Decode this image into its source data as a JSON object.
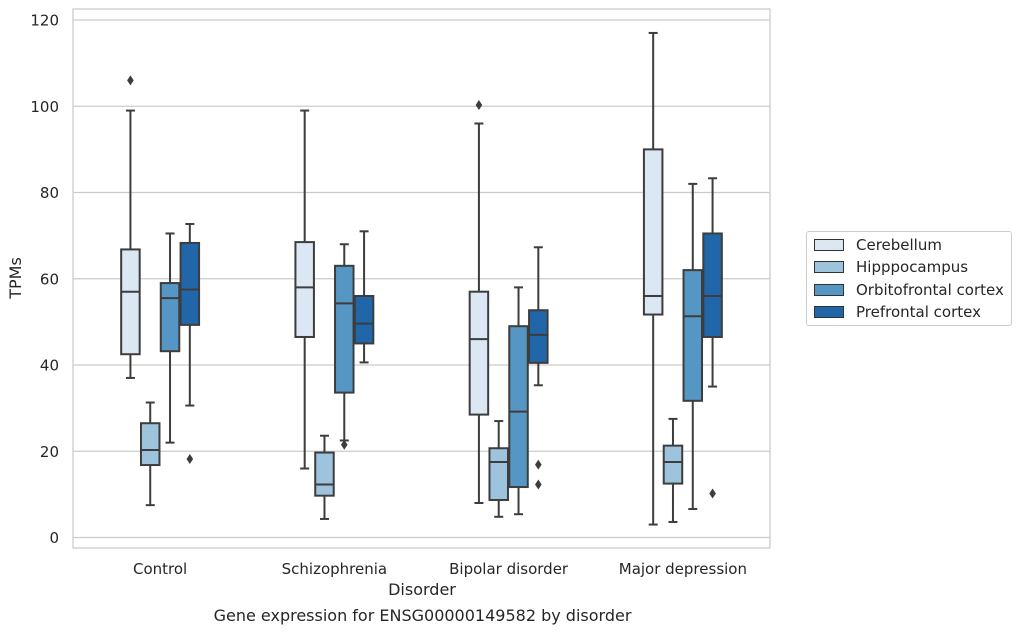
{
  "caption": "Gene expression for ENSG00000149582 by disorder",
  "chart_data": {
    "type": "box",
    "xlabel": "Disorder",
    "ylabel": "TPMs",
    "ylim": [
      -2.5,
      122.5
    ],
    "yticks": [
      0,
      20,
      40,
      60,
      80,
      100,
      120
    ],
    "grid": true,
    "legend_position": "right",
    "categories": [
      "Control",
      "Schizophrenia",
      "Bipolar disorder",
      "Major depression"
    ],
    "series": [
      {
        "name": "Cerebellum",
        "color": "#dbe7f3",
        "boxes": [
          {
            "whisker_low": 37,
            "q1": 42.5,
            "median": 57,
            "q3": 66.8,
            "whisker_high": 99,
            "outliers": [
              106
            ]
          },
          {
            "whisker_low": 16,
            "q1": 46.5,
            "median": 58,
            "q3": 68.5,
            "whisker_high": 99,
            "outliers": []
          },
          {
            "whisker_low": 8,
            "q1": 28.5,
            "median": 46,
            "q3": 57,
            "whisker_high": 96,
            "outliers": [
              100.3
            ]
          },
          {
            "whisker_low": 3,
            "q1": 51.7,
            "median": 56,
            "q3": 90,
            "whisker_high": 117,
            "outliers": []
          }
        ]
      },
      {
        "name": "Hipppocampus",
        "color": "#9ec4dd",
        "boxes": [
          {
            "whisker_low": 7.5,
            "q1": 16.8,
            "median": 20.3,
            "q3": 26.5,
            "whisker_high": 31.3,
            "outliers": []
          },
          {
            "whisker_low": 4.3,
            "q1": 9.7,
            "median": 12.3,
            "q3": 19.7,
            "whisker_high": 23.6,
            "outliers": []
          },
          {
            "whisker_low": 4.8,
            "q1": 8.7,
            "median": 17.5,
            "q3": 20.7,
            "whisker_high": 27,
            "outliers": []
          },
          {
            "whisker_low": 3.6,
            "q1": 12.5,
            "median": 17.5,
            "q3": 21.3,
            "whisker_high": 27.5,
            "outliers": []
          }
        ]
      },
      {
        "name": "Orbitofrontal cortex",
        "color": "#5596c4",
        "boxes": [
          {
            "whisker_low": 22,
            "q1": 43.2,
            "median": 55.5,
            "q3": 59,
            "whisker_high": 70.5,
            "outliers": []
          },
          {
            "whisker_low": 22.5,
            "q1": 33.6,
            "median": 54.3,
            "q3": 63,
            "whisker_high": 68,
            "outliers": [
              21.5
            ]
          },
          {
            "whisker_low": 5.4,
            "q1": 11.7,
            "median": 29.2,
            "q3": 49,
            "whisker_high": 58,
            "outliers": []
          },
          {
            "whisker_low": 6.6,
            "q1": 31.7,
            "median": 51.3,
            "q3": 62,
            "whisker_high": 82,
            "outliers": []
          }
        ]
      },
      {
        "name": "Prefrontal cortex",
        "color": "#2266aa",
        "boxes": [
          {
            "whisker_low": 30.6,
            "q1": 49.3,
            "median": 57.5,
            "q3": 68.3,
            "whisker_high": 72.7,
            "outliers": [
              18.2
            ]
          },
          {
            "whisker_low": 40.6,
            "q1": 45,
            "median": 49.6,
            "q3": 56,
            "whisker_high": 71,
            "outliers": []
          },
          {
            "whisker_low": 35.3,
            "q1": 40.5,
            "median": 47,
            "q3": 52.7,
            "whisker_high": 67.3,
            "outliers": [
              16.9,
              12.3
            ]
          },
          {
            "whisker_low": 35,
            "q1": 46.5,
            "median": 56,
            "q3": 70.5,
            "whisker_high": 83.3,
            "outliers": [
              10.2
            ]
          }
        ]
      }
    ]
  }
}
